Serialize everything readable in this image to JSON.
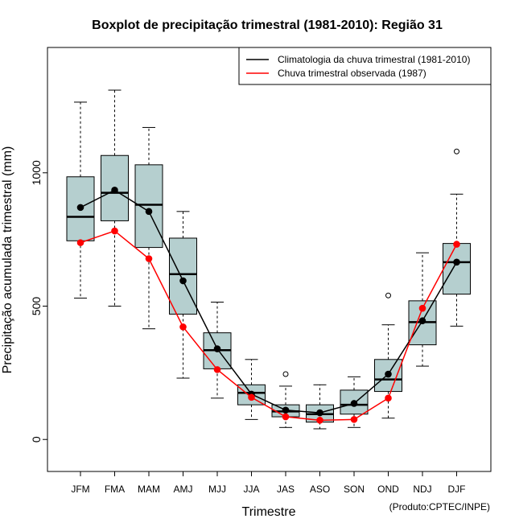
{
  "chart_data": {
    "type": "boxplot",
    "title": "Boxplot de precipitação trimestral (1981-2010): Região 31",
    "xlabel": "Trimestre",
    "ylabel": "Precipitação acumulada trimestral (mm)",
    "ylim": [
      -120,
      1470
    ],
    "yticks": [
      0,
      500,
      1000
    ],
    "ytick_labels": [
      "0",
      "500",
      "1000"
    ],
    "credit": "(Produto:CPTEC/INPE)",
    "categories": [
      "JFM",
      "FMA",
      "MAM",
      "AMJ",
      "MJJ",
      "JJA",
      "JAS",
      "ASO",
      "SON",
      "OND",
      "NDJ",
      "DJF"
    ],
    "box_color": "#b5cfcf",
    "boxes": [
      {
        "min": 530,
        "q1": 745,
        "median": 835,
        "q3": 985,
        "max": 1265,
        "outliers": []
      },
      {
        "min": 500,
        "q1": 820,
        "median": 925,
        "q3": 1065,
        "max": 1310,
        "outliers": []
      },
      {
        "min": 415,
        "q1": 720,
        "median": 880,
        "q3": 1030,
        "max": 1170,
        "outliers": []
      },
      {
        "min": 230,
        "q1": 470,
        "median": 620,
        "q3": 755,
        "max": 855,
        "outliers": []
      },
      {
        "min": 155,
        "q1": 265,
        "median": 335,
        "q3": 400,
        "max": 515,
        "outliers": []
      },
      {
        "min": 75,
        "q1": 130,
        "median": 175,
        "q3": 205,
        "max": 300,
        "outliers": []
      },
      {
        "min": 45,
        "q1": 85,
        "median": 105,
        "q3": 130,
        "max": 200,
        "outliers": [
          245
        ]
      },
      {
        "min": 40,
        "q1": 65,
        "median": 95,
        "q3": 130,
        "max": 205,
        "outliers": []
      },
      {
        "min": 45,
        "q1": 95,
        "median": 130,
        "q3": 185,
        "max": 235,
        "outliers": []
      },
      {
        "min": 80,
        "q1": 180,
        "median": 225,
        "q3": 300,
        "max": 430,
        "outliers": [
          540
        ]
      },
      {
        "min": 275,
        "q1": 355,
        "median": 440,
        "q3": 520,
        "max": 700,
        "outliers": []
      },
      {
        "min": 425,
        "q1": 545,
        "median": 665,
        "q3": 735,
        "max": 920,
        "outliers": [
          1080
        ]
      }
    ],
    "series": [
      {
        "name": "Climatologia da chuva trimestral (1981-2010)",
        "color": "#000000",
        "values": [
          870,
          935,
          855,
          595,
          340,
          170,
          110,
          100,
          135,
          245,
          445,
          665
        ]
      },
      {
        "name": "Chuva trimestral observada (1987)",
        "color": "#ff0000",
        "values": [
          738,
          782,
          678,
          422,
          262,
          158,
          85,
          72,
          75,
          155,
          492,
          732
        ]
      }
    ],
    "legend_position": "top-right"
  }
}
